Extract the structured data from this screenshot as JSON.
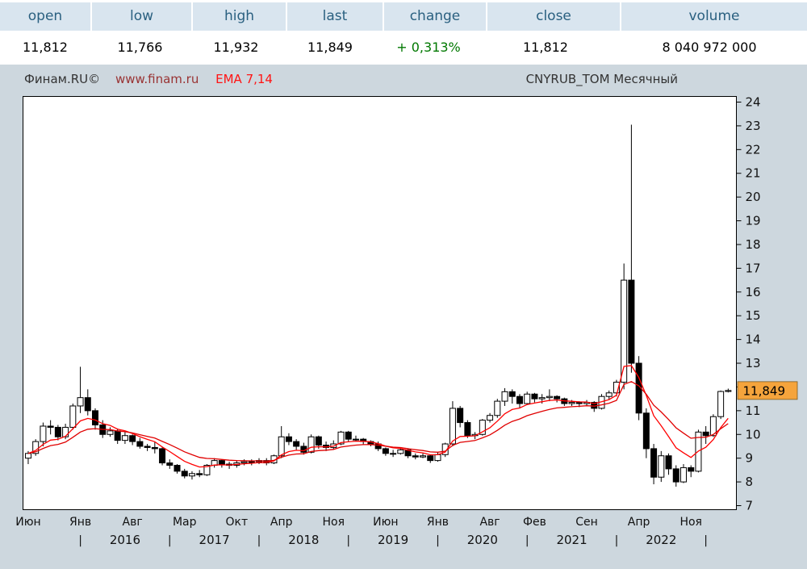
{
  "colors": {
    "page_bg": "#cdd7de",
    "header_bg": "#d9e5ef",
    "header_text": "#2a6080",
    "change_green": "#007800",
    "ema_red_1": "#ff0000",
    "ema_red_2": "#e00000",
    "price_tag_orange": "#f5a43c",
    "plot_bg": "#ffffff",
    "plot_border": "#000000"
  },
  "quote_bar": {
    "columns": [
      {
        "key": "open",
        "label": "open",
        "value": "11,812"
      },
      {
        "key": "low",
        "label": "low",
        "value": "11,766"
      },
      {
        "key": "high",
        "label": "high",
        "value": "11,932"
      },
      {
        "key": "last",
        "label": "last",
        "value": "11,849"
      },
      {
        "key": "change",
        "label": "change",
        "value": "+ 0,313%",
        "value_color": "#007800"
      },
      {
        "key": "close",
        "label": "close",
        "value": "11,812"
      },
      {
        "key": "volume",
        "label": "volume",
        "value": "8 040 972 000"
      }
    ]
  },
  "chart_header": {
    "brand": "Финам.RU©",
    "site": "www.finam.ru",
    "ema_label": "EMA 7,14",
    "instrument": "CNYRUB_TOM Месячный"
  },
  "chart_data": {
    "type": "candlestick",
    "title": "CNYRUB_TOM Месячный",
    "instrument": "CNYRUB_TOM",
    "timeframe": "Месячный",
    "start_month": "2015-06",
    "interval": "month",
    "grid": false,
    "ylim": [
      7,
      24
    ],
    "y_ticks": [
      7,
      8,
      9,
      10,
      11,
      12,
      13,
      14,
      15,
      16,
      17,
      18,
      19,
      20,
      21,
      22,
      23,
      24
    ],
    "x_month_ticks": [
      {
        "label": "Июн",
        "index": 0
      },
      {
        "label": "Янв",
        "index": 7
      },
      {
        "label": "Авг",
        "index": 14
      },
      {
        "label": "Мар",
        "index": 21
      },
      {
        "label": "Окт",
        "index": 28
      },
      {
        "label": "Апр",
        "index": 34
      },
      {
        "label": "Ноя",
        "index": 41
      },
      {
        "label": "Июн",
        "index": 48
      },
      {
        "label": "Янв",
        "index": 55
      },
      {
        "label": "Авг",
        "index": 62
      },
      {
        "label": "Фев",
        "index": 68
      },
      {
        "label": "Сен",
        "index": 75
      },
      {
        "label": "Апр",
        "index": 82
      },
      {
        "label": "Ноя",
        "index": 89
      }
    ],
    "x_year_separators_at": [
      7,
      19,
      31,
      43,
      55,
      67,
      79,
      91
    ],
    "x_year_labels": [
      {
        "label": "2016",
        "index": 13
      },
      {
        "label": "2017",
        "index": 25
      },
      {
        "label": "2018",
        "index": 37
      },
      {
        "label": "2019",
        "index": 49
      },
      {
        "label": "2020",
        "index": 61
      },
      {
        "label": "2021",
        "index": 73
      },
      {
        "label": "2022",
        "index": 85
      }
    ],
    "ema_periods": [
      7,
      14
    ],
    "up_candle_style": "hollow-white",
    "down_candle_style": "filled-black",
    "last_price": 11.849,
    "last_price_label": "11,849",
    "candles_ohlc": [
      [
        9.0,
        9.3,
        8.75,
        9.2
      ],
      [
        9.2,
        9.8,
        9.1,
        9.7
      ],
      [
        9.7,
        10.5,
        9.5,
        10.35
      ],
      [
        10.35,
        10.6,
        10.0,
        10.3
      ],
      [
        10.3,
        10.4,
        9.75,
        9.9
      ],
      [
        9.9,
        10.45,
        9.8,
        10.3
      ],
      [
        10.3,
        11.3,
        10.2,
        11.2
      ],
      [
        11.2,
        12.85,
        10.9,
        11.55
      ],
      [
        11.55,
        11.9,
        10.8,
        11.0
      ],
      [
        11.0,
        11.1,
        10.2,
        10.4
      ],
      [
        10.4,
        10.6,
        9.85,
        10.0
      ],
      [
        10.0,
        10.3,
        9.9,
        10.15
      ],
      [
        10.15,
        10.25,
        9.6,
        9.75
      ],
      [
        9.75,
        10.1,
        9.6,
        9.95
      ],
      [
        9.95,
        10.0,
        9.55,
        9.7
      ],
      [
        9.7,
        9.85,
        9.4,
        9.5
      ],
      [
        9.5,
        9.6,
        9.3,
        9.45
      ],
      [
        9.45,
        9.7,
        9.2,
        9.4
      ],
      [
        9.4,
        9.45,
        8.7,
        8.8
      ],
      [
        8.8,
        8.95,
        8.55,
        8.7
      ],
      [
        8.7,
        8.75,
        8.35,
        8.45
      ],
      [
        8.45,
        8.55,
        8.15,
        8.25
      ],
      [
        8.25,
        8.45,
        8.1,
        8.35
      ],
      [
        8.35,
        8.5,
        8.2,
        8.3
      ],
      [
        8.3,
        8.75,
        8.25,
        8.7
      ],
      [
        8.7,
        9.0,
        8.6,
        8.9
      ],
      [
        8.9,
        8.95,
        8.6,
        8.75
      ],
      [
        8.75,
        8.85,
        8.55,
        8.7
      ],
      [
        8.7,
        8.9,
        8.6,
        8.8
      ],
      [
        8.8,
        8.95,
        8.7,
        8.85
      ],
      [
        8.85,
        8.95,
        8.7,
        8.85
      ],
      [
        8.85,
        9.0,
        8.75,
        8.9
      ],
      [
        8.9,
        9.0,
        8.7,
        8.8
      ],
      [
        8.8,
        9.15,
        8.75,
        9.1
      ],
      [
        9.1,
        10.35,
        9.0,
        9.9
      ],
      [
        9.9,
        10.05,
        9.55,
        9.7
      ],
      [
        9.7,
        9.8,
        9.35,
        9.5
      ],
      [
        9.5,
        9.65,
        9.15,
        9.25
      ],
      [
        9.25,
        10.0,
        9.2,
        9.9
      ],
      [
        9.9,
        9.95,
        9.4,
        9.55
      ],
      [
        9.55,
        9.7,
        9.3,
        9.45
      ],
      [
        9.45,
        9.75,
        9.35,
        9.6
      ],
      [
        9.6,
        10.15,
        9.55,
        10.1
      ],
      [
        10.1,
        10.15,
        9.7,
        9.8
      ],
      [
        9.8,
        9.95,
        9.7,
        9.8
      ],
      [
        9.8,
        9.85,
        9.55,
        9.7
      ],
      [
        9.7,
        9.75,
        9.5,
        9.6
      ],
      [
        9.6,
        9.7,
        9.3,
        9.4
      ],
      [
        9.4,
        9.45,
        9.1,
        9.2
      ],
      [
        9.2,
        9.35,
        9.05,
        9.2
      ],
      [
        9.2,
        9.45,
        9.15,
        9.35
      ],
      [
        9.35,
        9.4,
        9.0,
        9.1
      ],
      [
        9.1,
        9.2,
        8.95,
        9.05
      ],
      [
        9.05,
        9.2,
        9.0,
        9.1
      ],
      [
        9.1,
        9.15,
        8.8,
        8.9
      ],
      [
        8.9,
        9.25,
        8.85,
        9.15
      ],
      [
        9.15,
        9.65,
        9.05,
        9.6
      ],
      [
        9.6,
        11.4,
        9.5,
        11.1
      ],
      [
        11.1,
        11.2,
        10.3,
        10.5
      ],
      [
        10.5,
        10.6,
        9.85,
        9.95
      ],
      [
        9.95,
        10.1,
        9.8,
        10.0
      ],
      [
        10.0,
        10.65,
        9.95,
        10.6
      ],
      [
        10.6,
        10.9,
        10.5,
        10.8
      ],
      [
        10.8,
        11.5,
        10.7,
        11.4
      ],
      [
        11.4,
        11.95,
        11.2,
        11.8
      ],
      [
        11.8,
        11.9,
        11.3,
        11.6
      ],
      [
        11.6,
        11.7,
        11.1,
        11.3
      ],
      [
        11.3,
        11.8,
        11.25,
        11.7
      ],
      [
        11.7,
        11.75,
        11.35,
        11.5
      ],
      [
        11.5,
        11.7,
        11.3,
        11.55
      ],
      [
        11.55,
        11.9,
        11.4,
        11.6
      ],
      [
        11.6,
        11.65,
        11.35,
        11.5
      ],
      [
        11.5,
        11.55,
        11.2,
        11.3
      ],
      [
        11.3,
        11.45,
        11.2,
        11.35
      ],
      [
        11.35,
        11.4,
        11.15,
        11.3
      ],
      [
        11.3,
        11.45,
        11.2,
        11.35
      ],
      [
        11.35,
        11.4,
        10.95,
        11.1
      ],
      [
        11.1,
        11.7,
        11.05,
        11.6
      ],
      [
        11.6,
        11.85,
        11.45,
        11.75
      ],
      [
        11.75,
        12.3,
        11.6,
        12.2
      ],
      [
        12.2,
        17.2,
        11.9,
        16.5
      ],
      [
        16.5,
        23.05,
        12.6,
        13.0
      ],
      [
        13.0,
        13.3,
        10.6,
        10.9
      ],
      [
        10.9,
        11.1,
        9.0,
        9.4
      ],
      [
        9.4,
        9.6,
        7.9,
        8.2
      ],
      [
        8.2,
        9.3,
        8.0,
        9.1
      ],
      [
        9.1,
        9.2,
        8.3,
        8.55
      ],
      [
        8.55,
        8.7,
        7.8,
        8.0
      ],
      [
        8.0,
        8.75,
        7.95,
        8.6
      ],
      [
        8.6,
        8.7,
        8.2,
        8.45
      ],
      [
        8.45,
        10.2,
        8.4,
        10.1
      ],
      [
        10.1,
        10.35,
        9.6,
        9.95
      ],
      [
        9.95,
        10.85,
        9.9,
        10.75
      ],
      [
        10.75,
        11.85,
        10.65,
        11.81
      ],
      [
        11.81,
        11.93,
        11.77,
        11.85
      ]
    ]
  }
}
